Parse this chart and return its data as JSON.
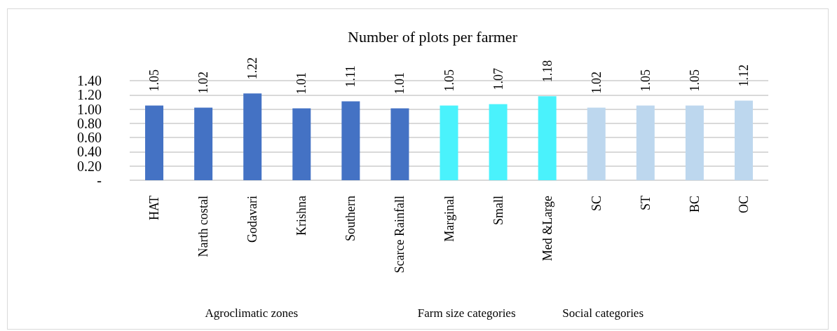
{
  "chart_data": {
    "type": "bar",
    "title": "Number of plots per farmer",
    "categories": [
      "HAT",
      "Narth costal",
      "Godavari",
      "Krishna",
      "Southern",
      "Scarce Rainfall",
      "Marginal",
      "Small",
      "Med &Large",
      "SC",
      "ST",
      "BC",
      "OC"
    ],
    "values": [
      1.05,
      1.02,
      1.22,
      1.01,
      1.11,
      1.01,
      1.05,
      1.07,
      1.18,
      1.02,
      1.05,
      1.05,
      1.12
    ],
    "colors": [
      "#4472c4",
      "#4472c4",
      "#4472c4",
      "#4472c4",
      "#4472c4",
      "#4472c4",
      "#4af2fc",
      "#4af2fc",
      "#4af2fc",
      "#bdd7ee",
      "#bdd7ee",
      "#bdd7ee",
      "#bdd7ee"
    ],
    "ylim": [
      0,
      1.4
    ],
    "yticks": [
      {
        "value": 0,
        "label": "-"
      },
      {
        "value": 0.2,
        "label": "0.20"
      },
      {
        "value": 0.4,
        "label": "0.40"
      },
      {
        "value": 0.6,
        "label": "0.60"
      },
      {
        "value": 0.8,
        "label": "0.80"
      },
      {
        "value": 1.0,
        "label": "1.00"
      },
      {
        "value": 1.2,
        "label": "1.20"
      },
      {
        "value": 1.4,
        "label": "1.40"
      }
    ],
    "grid": true,
    "data_labels": true,
    "annotations": [
      "Agroclimatic zones",
      "Farm size categories",
      "Social categories"
    ]
  }
}
